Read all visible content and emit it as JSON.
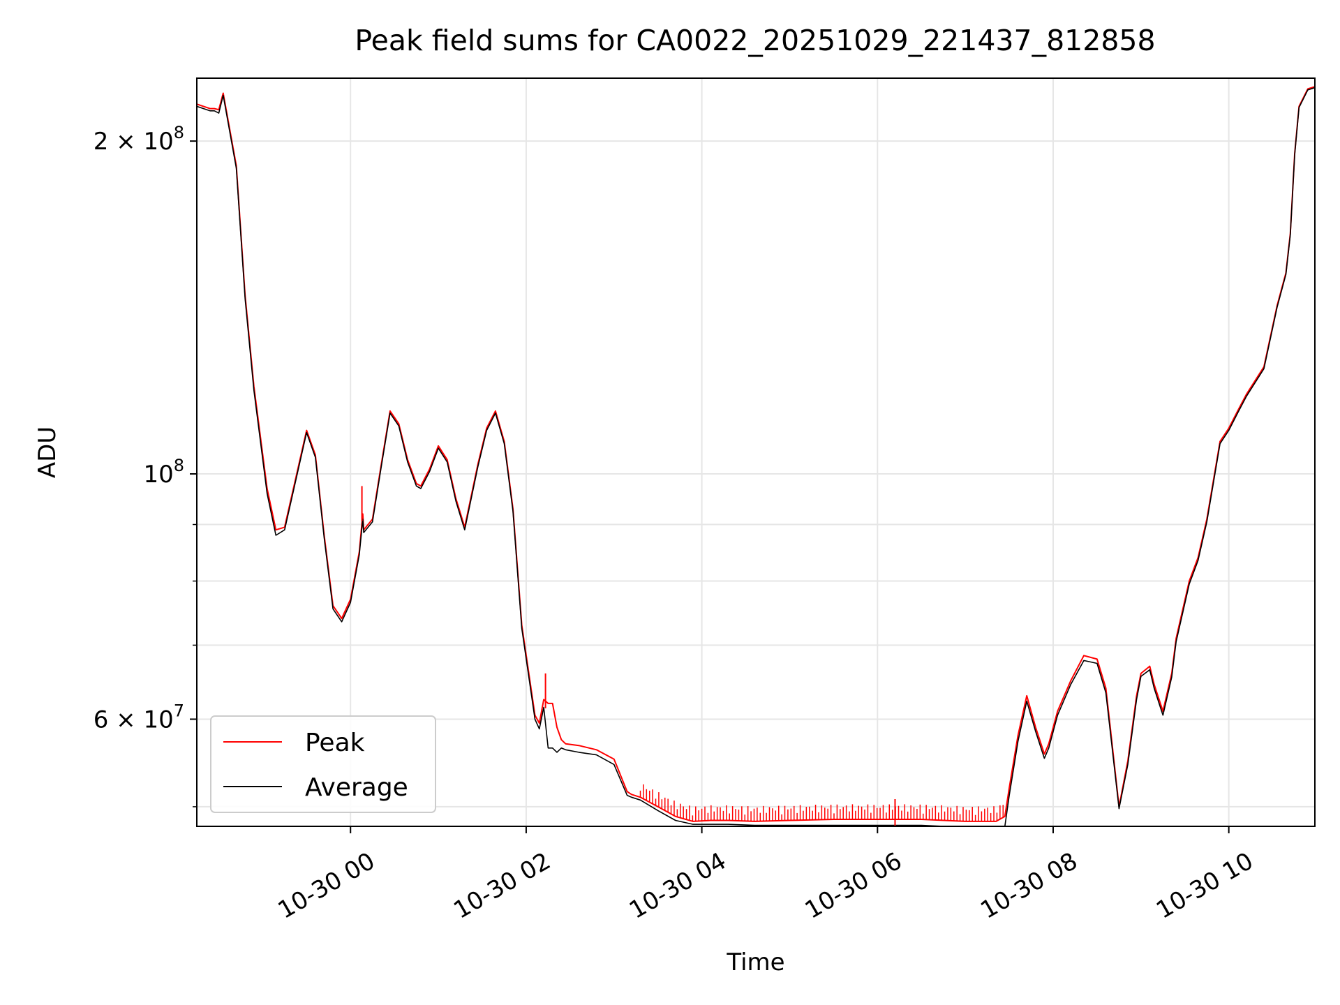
{
  "chart_data": {
    "type": "line",
    "title": "Peak field sums for CA0022_20251029_221437_812858",
    "xlabel": "Time",
    "ylabel": "ADU",
    "yscale": "log",
    "grid": true,
    "legend_position": "lower-left",
    "xlim_hours": [
      -1.75,
      10.98
    ],
    "ylim": [
      48000000,
      228000000
    ],
    "x_unit_note": "hours relative to 2025-10-30 00:00",
    "x_ticks": [
      {
        "value": 0,
        "label": "10-30 00"
      },
      {
        "value": 2,
        "label": "10-30 02"
      },
      {
        "value": 4,
        "label": "10-30 04"
      },
      {
        "value": 6,
        "label": "10-30 06"
      },
      {
        "value": 8,
        "label": "10-30 08"
      },
      {
        "value": 10,
        "label": "10-30 10"
      }
    ],
    "y_major_ticks": [
      {
        "value": 100000000,
        "label_base": "10",
        "label_exp": "8",
        "prefix": ""
      },
      {
        "value": 60000000,
        "label_base": "10",
        "label_exp": "7",
        "prefix": "6 × "
      },
      {
        "value": 200000000,
        "label_base": "10",
        "label_exp": "8",
        "prefix": "2 × "
      }
    ],
    "y_minor_ticks": [
      50000000,
      70000000,
      80000000,
      90000000
    ],
    "series": [
      {
        "name": "Peak",
        "color": "#ff0000",
        "x": [
          -1.75,
          -1.6,
          -1.55,
          -1.5,
          -1.45,
          -1.3,
          -1.2,
          -1.1,
          -0.95,
          -0.85,
          -0.75,
          -0.65,
          -0.5,
          -0.4,
          -0.3,
          -0.2,
          -0.1,
          0.0,
          0.1,
          0.14,
          0.15,
          0.25,
          0.35,
          0.45,
          0.55,
          0.65,
          0.75,
          0.8,
          0.9,
          1.0,
          1.1,
          1.2,
          1.3,
          1.45,
          1.55,
          1.65,
          1.75,
          1.85,
          1.95,
          2.1,
          2.15,
          2.2,
          2.25,
          2.3,
          2.35,
          2.4,
          2.45,
          2.6,
          2.8,
          3.0,
          3.15,
          3.2,
          3.3,
          3.5,
          3.7,
          3.9,
          4.1,
          4.3,
          4.6,
          5.0,
          5.5,
          6.0,
          6.5,
          7.0,
          7.2,
          7.35,
          7.45,
          7.5,
          7.6,
          7.7,
          7.8,
          7.9,
          7.95,
          8.05,
          8.2,
          8.35,
          8.5,
          8.6,
          8.65,
          8.75,
          8.85,
          8.95,
          9.0,
          9.1,
          9.15,
          9.25,
          9.35,
          9.4,
          9.55,
          9.65,
          9.75,
          9.9,
          10.0,
          10.1,
          10.2,
          10.4,
          10.55,
          10.65,
          10.7,
          10.75,
          10.8,
          10.9,
          10.98
        ],
        "y": [
          216000000,
          214000000,
          214000000,
          213500000,
          221000000,
          190000000,
          145000000,
          120000000,
          97000000,
          89000000,
          89500000,
          97000000,
          109500000,
          104000000,
          88000000,
          76000000,
          74000000,
          77000000,
          85000000,
          92000000,
          89000000,
          91000000,
          102000000,
          114000000,
          111000000,
          103000000,
          98000000,
          97500000,
          101000000,
          106000000,
          103000000,
          95000000,
          89500000,
          102000000,
          110000000,
          114000000,
          107000000,
          93000000,
          73000000,
          60500000,
          59500000,
          62500000,
          62000000,
          62000000,
          59000000,
          57500000,
          57000000,
          56800000,
          56300000,
          55200000,
          51600000,
          51300000,
          51000000,
          50000000,
          49000000,
          48500000,
          48600000,
          48600000,
          48500000,
          48600000,
          48700000,
          48700000,
          48700000,
          48500000,
          48500000,
          48500000,
          49000000,
          52000000,
          58000000,
          63000000,
          59000000,
          55800000,
          57000000,
          61000000,
          65000000,
          68500000,
          68000000,
          64000000,
          59000000,
          50000000,
          55000000,
          63000000,
          66000000,
          67000000,
          64500000,
          61000000,
          66000000,
          71000000,
          80000000,
          84000000,
          91000000,
          107000000,
          110000000,
          114000000,
          118000000,
          125000000,
          142000000,
          152000000,
          165000000,
          195000000,
          215000000,
          223000000,
          224000000
        ]
      },
      {
        "name": "Average",
        "color": "#000000",
        "x": [
          -1.75,
          -1.6,
          -1.55,
          -1.5,
          -1.45,
          -1.3,
          -1.2,
          -1.1,
          -0.95,
          -0.85,
          -0.75,
          -0.65,
          -0.5,
          -0.4,
          -0.3,
          -0.2,
          -0.1,
          0.0,
          0.1,
          0.14,
          0.15,
          0.25,
          0.35,
          0.45,
          0.55,
          0.65,
          0.75,
          0.8,
          0.9,
          1.0,
          1.1,
          1.2,
          1.3,
          1.45,
          1.55,
          1.65,
          1.75,
          1.85,
          1.95,
          2.1,
          2.15,
          2.2,
          2.25,
          2.3,
          2.35,
          2.4,
          2.45,
          2.6,
          2.8,
          3.0,
          3.15,
          3.2,
          3.3,
          3.5,
          3.7,
          3.9,
          4.1,
          4.3,
          4.6,
          5.0,
          5.5,
          6.0,
          6.5,
          7.0,
          7.2,
          7.35,
          7.45,
          7.5,
          7.6,
          7.7,
          7.8,
          7.9,
          7.95,
          8.05,
          8.2,
          8.35,
          8.5,
          8.6,
          8.65,
          8.75,
          8.85,
          8.95,
          9.0,
          9.1,
          9.15,
          9.25,
          9.35,
          9.4,
          9.55,
          9.65,
          9.75,
          9.9,
          10.0,
          10.1,
          10.2,
          10.4,
          10.55,
          10.65,
          10.7,
          10.75,
          10.8,
          10.9,
          10.98
        ],
        "y": [
          215000000,
          213000000,
          213000000,
          212000000,
          220000000,
          189000000,
          144000000,
          119000000,
          96000000,
          88000000,
          89000000,
          96500000,
          109000000,
          103500000,
          87500000,
          75500000,
          73500000,
          76500000,
          84500000,
          91000000,
          88500000,
          90500000,
          101500000,
          113500000,
          110500000,
          102500000,
          97500000,
          97000000,
          100500000,
          105500000,
          102500000,
          94500000,
          89000000,
          101500000,
          109500000,
          113500000,
          106500000,
          92500000,
          72500000,
          60000000,
          58800000,
          61500000,
          56500000,
          56500000,
          56000000,
          56500000,
          56300000,
          56000000,
          55700000,
          54600000,
          51200000,
          51000000,
          50700000,
          49600000,
          48600000,
          48200000,
          48200000,
          48200000,
          48100000,
          48100000,
          48100000,
          48100000,
          48100000,
          47900000,
          47800000,
          47800000,
          48000000,
          51200000,
          57300000,
          62300000,
          58500000,
          55300000,
          56500000,
          60500000,
          64500000,
          67800000,
          67400000,
          63400000,
          58500000,
          49800000,
          54600000,
          62500000,
          65600000,
          66500000,
          64000000,
          60500000,
          65500000,
          70500000,
          79500000,
          83500000,
          90500000,
          106500000,
          109500000,
          113500000,
          117500000,
          124500000,
          141500000,
          151500000,
          164500000,
          194500000,
          214500000,
          222500000,
          223500000
        ]
      }
    ],
    "peak_spikes": [
      {
        "x": 0.13,
        "y": 97500000
      },
      {
        "x": 2.22,
        "y": 66000000
      },
      {
        "x": 6.2,
        "y": 50800000
      }
    ]
  }
}
